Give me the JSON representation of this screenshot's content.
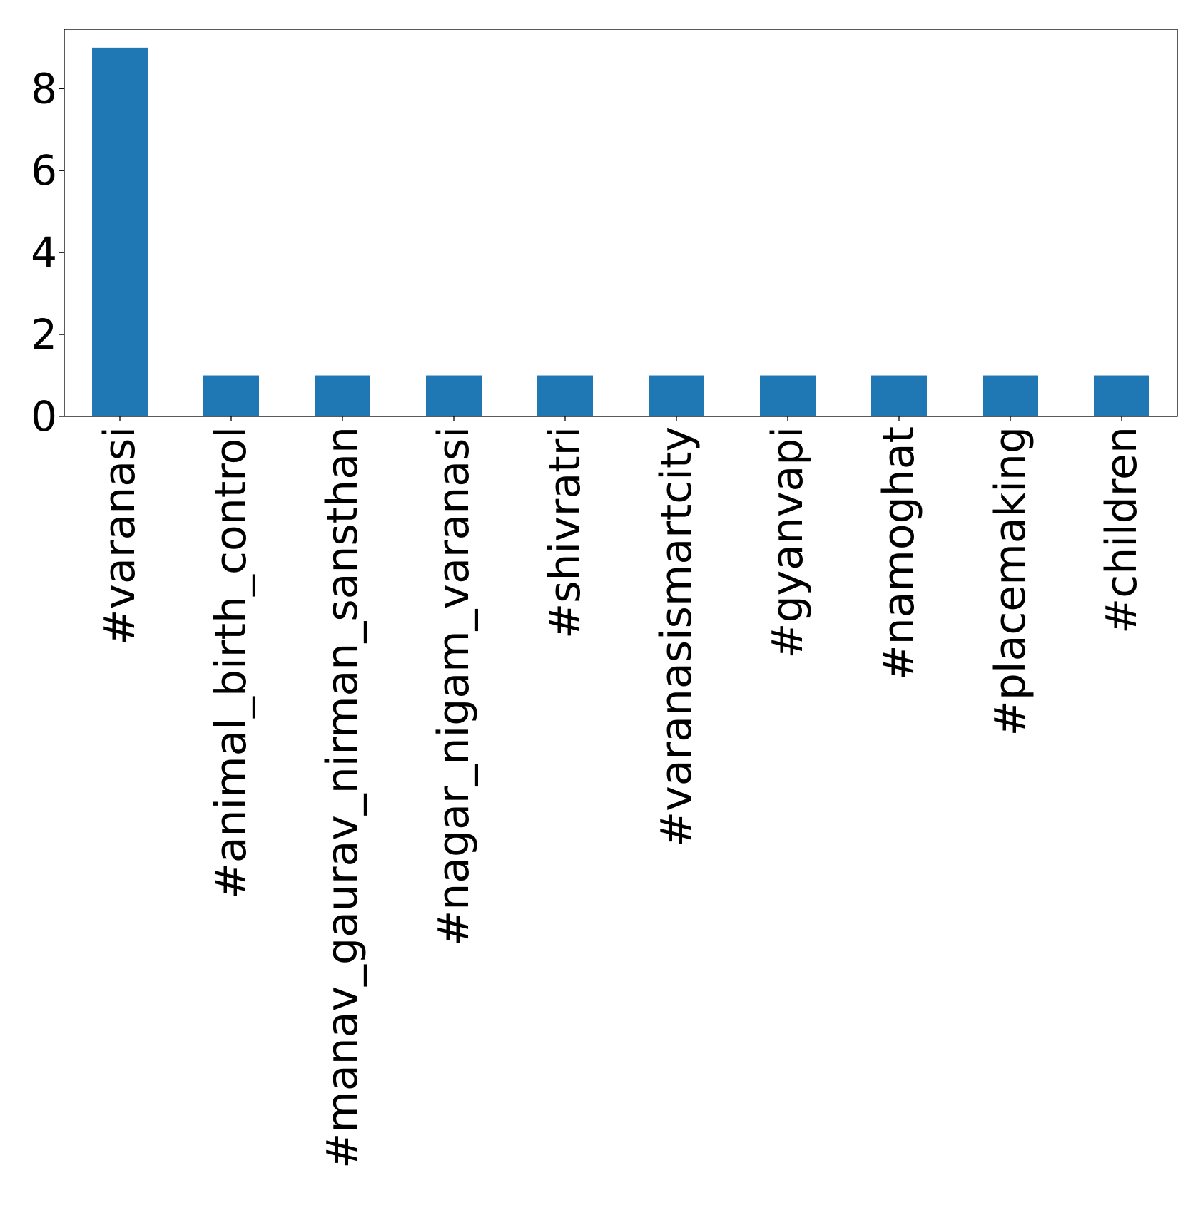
{
  "chart_data": {
    "type": "bar",
    "categories": [
      "#varanasi",
      "#animal_birth_control",
      "#manav_gaurav_nirman_sansthan",
      "#nagar_nigam_varanasi",
      "#shivratri",
      "#varanasismartcity",
      "#gyanvapi",
      "#namoghat",
      "#placemaking",
      "#children"
    ],
    "values": [
      9,
      1,
      1,
      1,
      1,
      1,
      1,
      1,
      1,
      1
    ],
    "title": "",
    "xlabel": "",
    "ylabel": "",
    "ylim": [
      0,
      9.45
    ],
    "yticks": [
      0,
      2,
      4,
      6,
      8
    ],
    "grid": false,
    "bar_color": "#1f77b4"
  }
}
